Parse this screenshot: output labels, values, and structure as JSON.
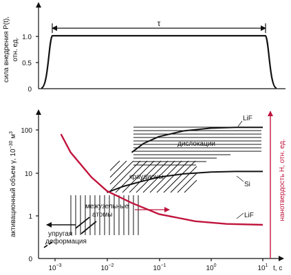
{
  "chart_data": [
    {
      "type": "line",
      "ylabel": "сила внедрения P(t),",
      "ylabel2": "отн. ед.",
      "yticks": [
        "0",
        "0.5",
        "1.0"
      ],
      "ylim": [
        0,
        1.35
      ],
      "annotation": "τ",
      "series": [
        {
          "x": [
            -3.25,
            -3.1,
            -3.0,
            -2.9,
            0.9,
            1.0,
            1.1,
            1.2
          ],
          "values": [
            0,
            0.2,
            0.95,
            1.02,
            1.02,
            0.95,
            0.2,
            0
          ]
        }
      ]
    },
    {
      "type": "line",
      "ylabel": "активационный объем γ, 10",
      "ylabel_sup": "−30",
      "ylabel_tail": " м",
      "ylabel_sup2": "3",
      "ylabel_right": "нанотвердость H, отн. ед.",
      "xlabel": "t, с",
      "x_scale": "log",
      "y_scale": "log",
      "xlim": [
        0.0005,
        20
      ],
      "xticks": [
        {
          "base": "10",
          "exp": "−3"
        },
        {
          "base": "10",
          "exp": "−2"
        },
        {
          "base": "10",
          "exp": "−1"
        },
        {
          "base": "10",
          "exp": "0"
        },
        {
          "base": "10",
          "exp": "1"
        }
      ],
      "yticks": [
        "0",
        "1",
        "10",
        "100"
      ],
      "regions": [
        "дислокации",
        "краудионы",
        "межузельные",
        "атомы",
        "упругая",
        "деформация"
      ],
      "labels": [
        "LiF",
        "Si",
        "LiF"
      ],
      "series": [
        {
          "x": [
            0.03,
            0.05,
            0.1,
            0.3,
            1,
            3,
            10
          ],
          "values": [
            30,
            48,
            70,
            95,
            110,
            115,
            115
          ]
        },
        {
          "x": [
            0.01,
            0.02,
            0.05,
            0.1,
            0.3,
            1,
            3,
            10
          ],
          "values": [
            3.5,
            4.8,
            6.5,
            8,
            9.5,
            10.5,
            10.8,
            10.8
          ]
        },
        {
          "x": [
            0.0013,
            0.002,
            0.005,
            0.01,
            0.03,
            0.1,
            0.5,
            2,
            10
          ],
          "values": [
            80,
            30,
            8,
            3.8,
            2,
            1.1,
            0.75,
            0.65,
            0.62
          ]
        }
      ]
    }
  ]
}
